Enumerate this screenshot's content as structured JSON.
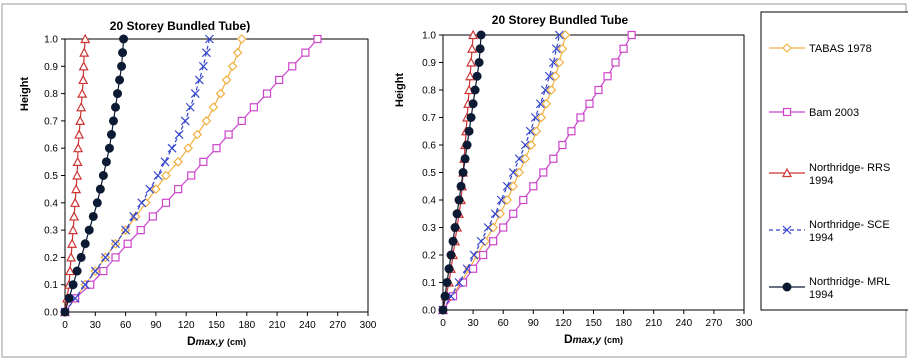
{
  "chart_data": [
    {
      "type": "line",
      "title": "20 Storey Bundled Tube)",
      "xlabel_main": "D",
      "xlabel_sub": "max,y",
      "xlabel_unit": "(cm)",
      "ylabel": "Height",
      "xlim": [
        0,
        300
      ],
      "ylim": [
        0,
        1.0
      ],
      "x_ticks": [
        "0",
        "30",
        "60",
        "90",
        "120",
        "150",
        "180",
        "210",
        "240",
        "270",
        "300"
      ],
      "y_ticks": [
        "0.0",
        "0.1",
        "0.2",
        "0.3",
        "0.4",
        "0.5",
        "0.6",
        "0.7",
        "0.8",
        "0.9",
        "1.0"
      ],
      "heights": [
        0,
        0.05,
        0.1,
        0.15,
        0.2,
        0.25,
        0.3,
        0.35,
        0.4,
        0.45,
        0.5,
        0.55,
        0.6,
        0.65,
        0.7,
        0.75,
        0.8,
        0.85,
        0.9,
        0.95,
        1.0
      ],
      "series": [
        {
          "name": "TABAS 1978",
          "color": "#f0b040",
          "marker": "diamond",
          "dash": "solid",
          "values": [
            0,
            10,
            20,
            30,
            40,
            50,
            60,
            70,
            80,
            90,
            100,
            112,
            122,
            131,
            140,
            147,
            154,
            160,
            166,
            171,
            175
          ]
        },
        {
          "name": "Bam 2003",
          "color": "#cc44cc",
          "marker": "square",
          "dash": "solid",
          "values": [
            0,
            10,
            25,
            38,
            50,
            62,
            75,
            87,
            100,
            112,
            125,
            137,
            150,
            162,
            175,
            187,
            200,
            212,
            225,
            238,
            250
          ]
        },
        {
          "name": "Northridge- RRS 1994",
          "color": "#cc3333",
          "marker": "triangle",
          "dash": "solid",
          "values": [
            0,
            2,
            4,
            5,
            6,
            7,
            8,
            9,
            10,
            11,
            12,
            12.5,
            13,
            14,
            15,
            16,
            17,
            18,
            18.5,
            19,
            20
          ]
        },
        {
          "name": "Northridge- SCE 1994",
          "color": "#3344cc",
          "marker": "cross",
          "dash": "dash",
          "values": [
            0,
            10,
            20,
            30,
            40,
            50,
            60,
            68,
            76,
            84,
            92,
            99,
            106,
            113,
            119,
            124,
            129,
            133,
            137,
            140,
            143
          ]
        },
        {
          "name": "Northridge- MRL 1994",
          "color": "#0d1a33",
          "marker": "circle",
          "dash": "solid",
          "values": [
            0,
            4,
            8,
            12,
            16,
            20,
            24,
            28,
            32,
            35,
            38,
            41,
            44,
            46,
            48,
            50,
            52,
            54,
            56,
            57,
            58
          ]
        }
      ]
    },
    {
      "type": "line",
      "title": "20 Storey Bundled  Tube",
      "xlabel_main": "D",
      "xlabel_sub": "max,y",
      "xlabel_unit": "(cm)",
      "ylabel": "Height",
      "xlim": [
        0,
        300
      ],
      "ylim": [
        0,
        1.0
      ],
      "x_ticks": [
        "0",
        "30",
        "60",
        "90",
        "120",
        "150",
        "180",
        "210",
        "240",
        "270",
        "300"
      ],
      "y_ticks": [
        "0.0",
        "0.1",
        "0.2",
        "0.3",
        "0.4",
        "0.5",
        "0.6",
        "0.7",
        "0.8",
        "0.9",
        "1.0"
      ],
      "heights": [
        0,
        0.05,
        0.1,
        0.15,
        0.2,
        0.25,
        0.3,
        0.35,
        0.4,
        0.45,
        0.5,
        0.55,
        0.6,
        0.65,
        0.7,
        0.75,
        0.8,
        0.85,
        0.9,
        0.95,
        1.0
      ],
      "series": [
        {
          "name": "TABAS 1978",
          "color": "#f0b040",
          "marker": "diamond",
          "dash": "solid",
          "values": [
            0,
            9,
            18,
            26,
            34,
            42,
            50,
            57,
            64,
            70,
            76,
            82,
            88,
            93,
            98,
            103,
            108,
            112,
            116,
            119,
            122
          ]
        },
        {
          "name": "Bam 2003",
          "color": "#cc44cc",
          "marker": "square",
          "dash": "solid",
          "values": [
            0,
            10,
            20,
            30,
            40,
            50,
            60,
            70,
            80,
            90,
            100,
            110,
            119,
            128,
            137,
            146,
            155,
            164,
            172,
            180,
            188
          ]
        },
        {
          "name": "Northridge- RRS 1994",
          "color": "#cc3333",
          "marker": "triangle",
          "dash": "solid",
          "values": [
            0,
            3,
            6,
            8,
            10,
            12,
            14,
            16,
            18,
            19,
            20,
            21,
            22,
            23,
            24,
            25,
            26,
            27,
            28,
            29,
            30
          ]
        },
        {
          "name": "Northridge- SCE 1994",
          "color": "#3344cc",
          "marker": "cross",
          "dash": "dash",
          "values": [
            0,
            8,
            16,
            24,
            31,
            38,
            45,
            52,
            58,
            64,
            70,
            76,
            82,
            87,
            92,
            97,
            102,
            106,
            110,
            113,
            116
          ]
        },
        {
          "name": "Northridge- MRL 1994",
          "color": "#0d1a33",
          "marker": "circle",
          "dash": "solid",
          "values": [
            0,
            2,
            4,
            6,
            8,
            10,
            12,
            14,
            16,
            18,
            20,
            22,
            24,
            26,
            28,
            30,
            32,
            34,
            36,
            37,
            38
          ]
        }
      ]
    }
  ],
  "legend": {
    "entries": [
      {
        "line1": "TABAS 1978",
        "line2": "",
        "color": "#f0b040",
        "marker": "diamond",
        "dash": "solid"
      },
      {
        "line1": "Bam 2003",
        "line2": "",
        "color": "#cc44cc",
        "marker": "square",
        "dash": "solid"
      },
      {
        "line1": "Northridge- RRS",
        "line2": "1994",
        "color": "#cc3333",
        "marker": "triangle",
        "dash": "solid"
      },
      {
        "line1": "Northridge- SCE",
        "line2": "1994",
        "color": "#3344cc",
        "marker": "cross",
        "dash": "dash"
      },
      {
        "line1": "Northridge- MRL",
        "line2": "1994",
        "color": "#0d1a33",
        "marker": "circle",
        "dash": "solid"
      }
    ]
  }
}
